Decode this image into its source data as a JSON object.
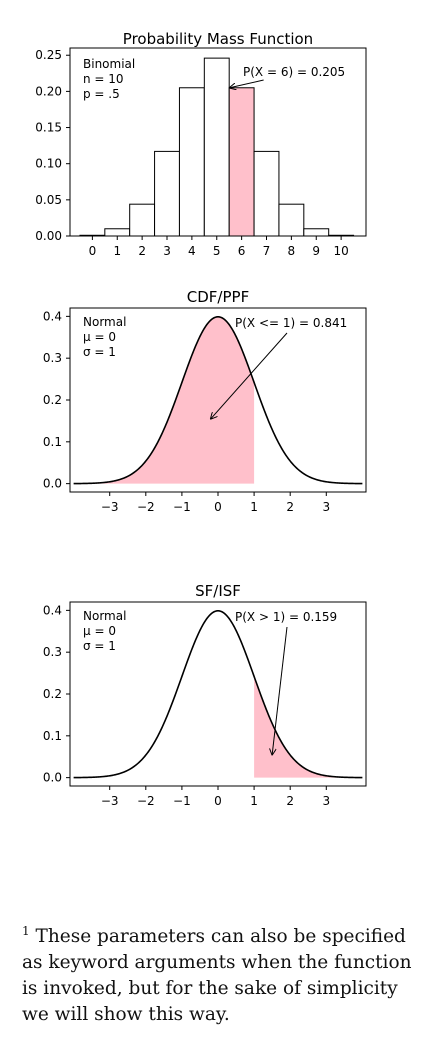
{
  "colors": {
    "highlight": "#ffc0cb",
    "line": "#000000",
    "bar_fill": "#ffffff"
  },
  "chart_data": [
    {
      "type": "bar",
      "title": "Probability Mass Function",
      "distribution_text": [
        "Binomial",
        "n = 10",
        "p = .5"
      ],
      "categories": [
        "0",
        "1",
        "2",
        "3",
        "4",
        "5",
        "6",
        "7",
        "8",
        "9",
        "10"
      ],
      "values": [
        0.001,
        0.01,
        0.044,
        0.117,
        0.205,
        0.246,
        0.205,
        0.117,
        0.044,
        0.01,
        0.001
      ],
      "highlight_index": 6,
      "annotation": "P(X = 6) = 0.205",
      "ylim": [
        0,
        0.26
      ],
      "yticks": [
        0.0,
        0.05,
        0.1,
        0.15,
        0.2,
        0.25
      ],
      "ytick_labels": [
        "0.00",
        "0.05",
        "0.10",
        "0.15",
        "0.20",
        "0.25"
      ],
      "xlim": [
        -0.9,
        11.0
      ]
    },
    {
      "type": "line",
      "title": "CDF/PPF",
      "distribution_text": [
        "Normal",
        "μ = 0",
        "σ = 1"
      ],
      "function": "normal_pdf",
      "mean": 0,
      "std": 1,
      "xlim": [
        -4.1,
        4.1
      ],
      "ylim": [
        -0.02,
        0.42
      ],
      "xticks": [
        -3,
        -2,
        -1,
        0,
        1,
        2,
        3
      ],
      "xtick_labels": [
        "−3",
        "−2",
        "−1",
        "0",
        "1",
        "2",
        "3"
      ],
      "yticks": [
        0.0,
        0.1,
        0.2,
        0.3,
        0.4
      ],
      "ytick_labels": [
        "0.0",
        "0.1",
        "0.2",
        "0.3",
        "0.4"
      ],
      "shade_from": -4,
      "shade_to": 1,
      "annotation": "P(X <= 1) = 0.841",
      "arrow_target": [
        -0.2,
        0.155
      ]
    },
    {
      "type": "line",
      "title": "SF/ISF",
      "distribution_text": [
        "Normal",
        "μ = 0",
        "σ = 1"
      ],
      "function": "normal_pdf",
      "mean": 0,
      "std": 1,
      "xlim": [
        -4.1,
        4.1
      ],
      "ylim": [
        -0.02,
        0.42
      ],
      "xticks": [
        -3,
        -2,
        -1,
        0,
        1,
        2,
        3
      ],
      "xtick_labels": [
        "−3",
        "−2",
        "−1",
        "0",
        "1",
        "2",
        "3"
      ],
      "yticks": [
        0.0,
        0.1,
        0.2,
        0.3,
        0.4
      ],
      "ytick_labels": [
        "0.0",
        "0.1",
        "0.2",
        "0.3",
        "0.4"
      ],
      "shade_from": 1,
      "shade_to": 4,
      "annotation": "P(X > 1) = 0.159",
      "arrow_target": [
        1.5,
        0.055
      ]
    }
  ],
  "footnote": {
    "marker": "1",
    "text": "These parameters can also be specified as keyword arguments when the function is invoked, but for the sake of simplicity we will show this way."
  }
}
